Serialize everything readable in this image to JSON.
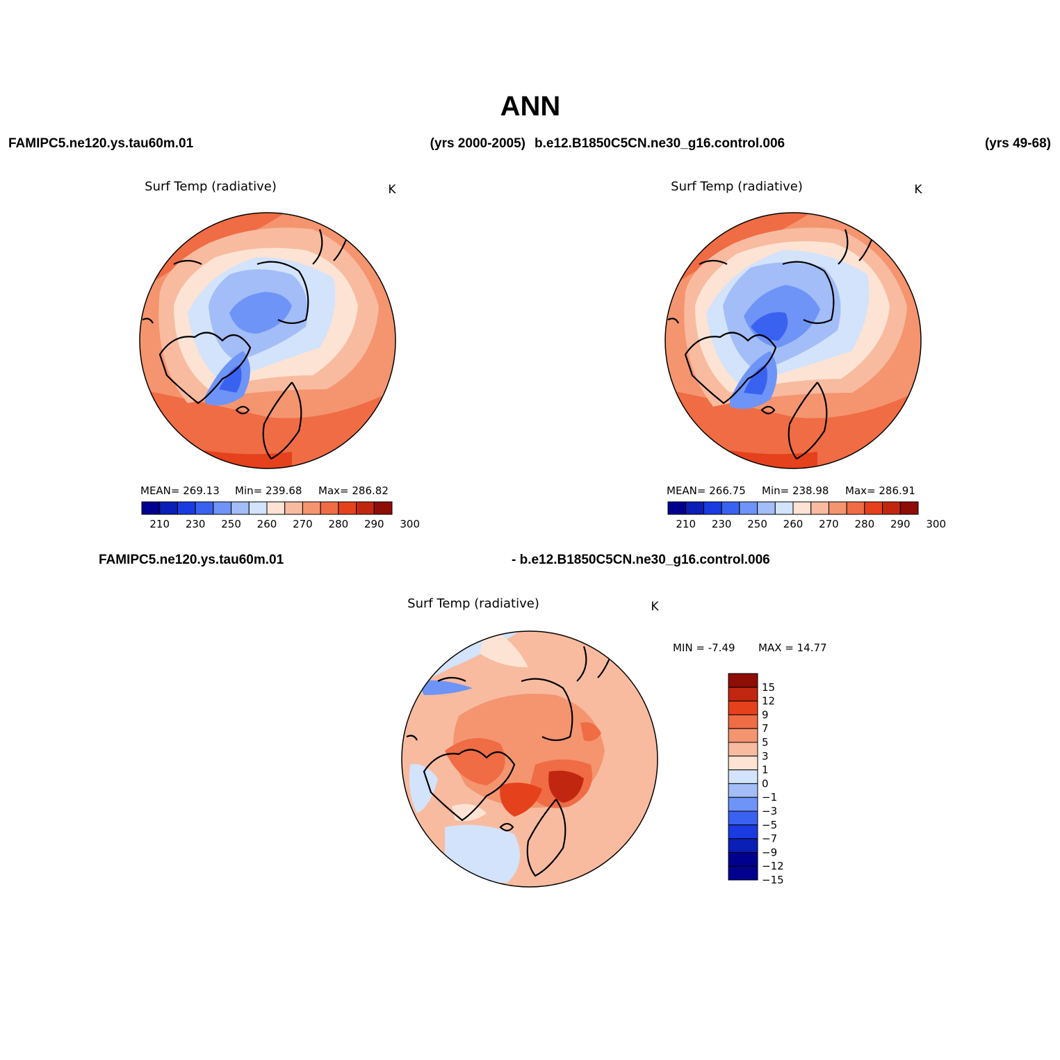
{
  "figure": {
    "title": "ANN",
    "case_label_1": "FAMIPC5.ne120.ys.tau60m.01",
    "years_label_1": "(yrs 2000-2005)",
    "case_label_2": "b.e12.B1850C5CN.ne30_g16.control.006",
    "years_label_2": "(yrs 49-68)",
    "diff_label_left": "FAMIPC5.ne120.ys.tau60m.01",
    "diff_label_right": "- b.e12.B1850C5CN.ne30_g16.control.006"
  },
  "colors": {
    "abs_scale": [
      "#00008f",
      "#0a1fb5",
      "#1a3be0",
      "#3a62f0",
      "#6f94f7",
      "#a2bdf7",
      "#d2e3fb",
      "#fde3d3",
      "#f8bba0",
      "#f4956f",
      "#ef6c45",
      "#e5411d",
      "#c12710",
      "#8f0d07"
    ],
    "diff_scale": [
      "#00008f",
      "#0a1fb5",
      "#1a3be0",
      "#3a62f0",
      "#6f94f7",
      "#a2bdf7",
      "#d2e3fb",
      "#fde3d3",
      "#f8bba0",
      "#f4956f",
      "#ef6c45",
      "#e5411d",
      "#c12710",
      "#8f0d07"
    ]
  },
  "chart_data": [
    {
      "type": "heatmap",
      "title": "Surf Temp (radiative)",
      "units": "K",
      "stats": {
        "mean_label": "MEAN=",
        "mean": "269.13",
        "min_label": "Min=",
        "min": "239.68",
        "max_label": "Max=",
        "max": "286.82"
      },
      "colorbar_ticks": [
        "210",
        "230",
        "250",
        "260",
        "270",
        "280",
        "290",
        "300"
      ],
      "colorbar_levels": [
        210,
        220,
        230,
        240,
        250,
        255,
        260,
        265,
        270,
        275,
        280,
        285,
        290,
        295,
        300
      ]
    },
    {
      "type": "heatmap",
      "title": "Surf Temp (radiative)",
      "units": "K",
      "stats": {
        "mean_label": "MEAN=",
        "mean": "266.75",
        "min_label": "Min=",
        "min": "238.98",
        "max_label": "Max=",
        "max": "286.91"
      },
      "colorbar_ticks": [
        "210",
        "230",
        "250",
        "260",
        "270",
        "280",
        "290",
        "300"
      ],
      "colorbar_levels": [
        210,
        220,
        230,
        240,
        250,
        255,
        260,
        265,
        270,
        275,
        280,
        285,
        290,
        295,
        300
      ]
    },
    {
      "type": "heatmap",
      "title": "Surf Temp (radiative)",
      "units": "K",
      "stats": {
        "min_label": "MIN =",
        "min": "-7.49",
        "max_label": "MAX =",
        "max": "14.77"
      },
      "colorbar_ticks": [
        "15",
        "12",
        "9",
        "7",
        "5",
        "3",
        "1",
        "0",
        "−1",
        "−3",
        "−5",
        "−7",
        "−9",
        "−12",
        "−15"
      ]
    }
  ]
}
